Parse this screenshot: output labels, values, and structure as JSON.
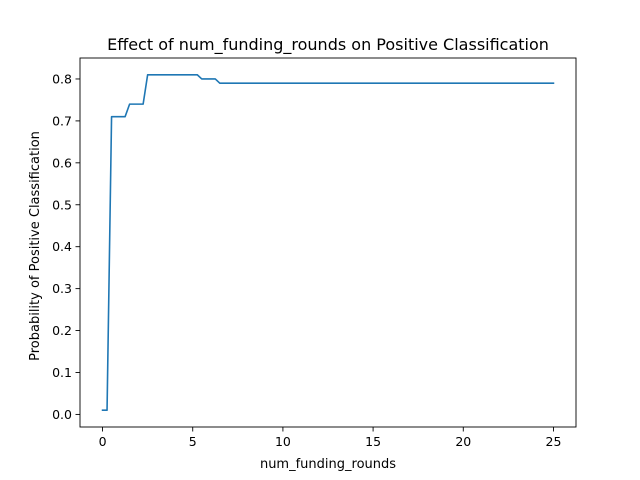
{
  "chart_data": {
    "type": "line",
    "title": "Effect of num_funding_rounds on Positive Classification",
    "xlabel": "num_funding_rounds",
    "ylabel": "Probability of Positive Classification",
    "xlim": [
      -1.25,
      26.25
    ],
    "ylim": [
      -0.03,
      0.85
    ],
    "xticks": [
      0,
      5,
      10,
      15,
      20,
      25
    ],
    "yticks": [
      0.0,
      0.1,
      0.2,
      0.3,
      0.4,
      0.5,
      0.6,
      0.7,
      0.8
    ],
    "grid": false,
    "series": [
      {
        "color": "#1f77b4",
        "x": [
          0,
          0.25,
          0.5,
          1.0,
          1.25,
          1.5,
          2.0,
          2.25,
          2.5,
          5.25,
          5.5,
          6.25,
          6.5,
          25
        ],
        "y": [
          0.01,
          0.01,
          0.71,
          0.71,
          0.71,
          0.74,
          0.74,
          0.74,
          0.81,
          0.81,
          0.8,
          0.8,
          0.79,
          0.79
        ]
      }
    ]
  }
}
